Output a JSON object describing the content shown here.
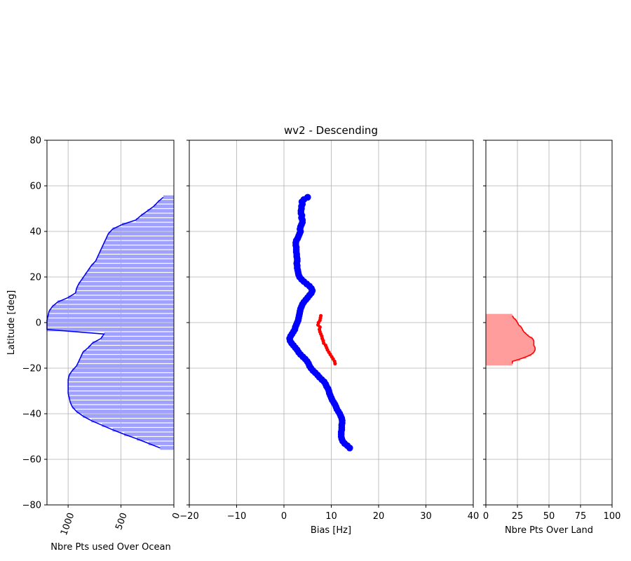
{
  "figure": {
    "title": "wv2 - Descending",
    "ylabel": "Latitude [deg]"
  },
  "chart_data": [
    {
      "id": "ocean",
      "type": "area",
      "xlabel": "Nbre Pts used Over Ocean",
      "ylabel": "Latitude [deg]",
      "xlim": [
        1200,
        0
      ],
      "ylim": [
        -80,
        80
      ],
      "x_inverted": true,
      "xticks": [
        1000,
        500,
        0
      ],
      "yticks": [
        -80,
        -60,
        -40,
        -20,
        0,
        20,
        40,
        60,
        80
      ],
      "xtick_rotation": 70,
      "grid": true,
      "fill_color": "#a0a0ff",
      "line_color": "#0000ff",
      "latitudes": [
        -55,
        -53,
        -51,
        -49,
        -47,
        -45,
        -43,
        -41,
        -39,
        -37,
        -35,
        -33,
        -31,
        -29,
        -27,
        -25,
        -23,
        -21,
        -19,
        -17,
        -15,
        -13,
        -11,
        -9,
        -7,
        -5,
        -3,
        -1,
        1,
        3,
        5,
        7,
        9,
        11,
        13,
        15,
        17,
        19,
        21,
        23,
        25,
        27,
        29,
        31,
        33,
        35,
        37,
        39,
        41,
        43,
        45,
        47,
        49,
        51,
        53,
        55
      ],
      "counts": [
        130,
        240,
        350,
        470,
        580,
        680,
        780,
        860,
        920,
        960,
        980,
        990,
        1000,
        1000,
        1000,
        1000,
        990,
        960,
        920,
        900,
        880,
        860,
        810,
        770,
        690,
        660,
        1200,
        1200,
        1200,
        1190,
        1180,
        1150,
        1100,
        1000,
        930,
        920,
        900,
        870,
        840,
        810,
        780,
        740,
        720,
        700,
        680,
        660,
        640,
        620,
        580,
        490,
        360,
        310,
        250,
        190,
        150,
        100
      ]
    },
    {
      "id": "bias",
      "type": "scatter",
      "title": "wv2 - Descending",
      "xlabel": "Bias [Hz]",
      "xlim": [
        -20,
        40
      ],
      "ylim": [
        -80,
        80
      ],
      "xticks": [
        -20,
        -10,
        0,
        10,
        20,
        30,
        40
      ],
      "grid": true,
      "series": [
        {
          "color": "#0000ff",
          "lat": [
            55,
            54,
            53,
            52,
            51,
            50,
            49,
            48,
            47,
            46,
            45,
            44,
            43,
            42,
            41,
            40,
            39,
            38,
            37,
            36,
            35,
            34,
            33,
            32,
            31,
            30,
            29,
            28,
            27,
            26,
            25,
            24,
            23,
            22,
            21,
            20,
            19,
            18,
            17,
            16,
            15,
            14,
            13,
            12,
            11,
            10,
            9,
            8,
            7,
            6,
            5,
            4,
            3,
            2,
            1,
            0,
            -1,
            -2,
            -3,
            -4,
            -5,
            -6,
            -7,
            -8,
            -9,
            -10,
            -11,
            -12,
            -13,
            -14,
            -15,
            -16,
            -17,
            -18,
            -19,
            -20,
            -21,
            -22,
            -23,
            -24,
            -25,
            -26,
            -27,
            -28,
            -29,
            -30,
            -31,
            -32,
            -33,
            -34,
            -35,
            -36,
            -37,
            -38,
            -39,
            -40,
            -41,
            -42,
            -43,
            -44,
            -45,
            -46,
            -47,
            -48,
            -49,
            -50,
            -51,
            -52,
            -53,
            -54,
            -55
          ],
          "bias": [
            5.0,
            4.2,
            3.8,
            3.9,
            3.7,
            3.7,
            3.6,
            3.6,
            3.8,
            3.7,
            3.9,
            3.9,
            3.7,
            3.5,
            3.4,
            3.5,
            3.3,
            3.1,
            2.9,
            2.6,
            2.5,
            2.5,
            2.6,
            2.6,
            2.6,
            2.7,
            2.7,
            2.8,
            2.8,
            2.7,
            2.8,
            2.8,
            2.9,
            3.0,
            3.1,
            3.3,
            3.7,
            4.2,
            4.8,
            5.4,
            5.8,
            6.0,
            5.8,
            5.4,
            5.0,
            4.6,
            4.2,
            3.9,
            3.7,
            3.5,
            3.4,
            3.3,
            3.2,
            3.1,
            3.0,
            2.8,
            2.6,
            2.4,
            2.3,
            2.0,
            1.7,
            1.4,
            1.2,
            1.3,
            1.6,
            2.0,
            2.4,
            2.8,
            3.1,
            3.5,
            4.0,
            4.5,
            4.9,
            5.2,
            5.4,
            5.7,
            6.1,
            6.6,
            7.1,
            7.5,
            8.0,
            8.5,
            8.8,
            9.0,
            9.3,
            9.5,
            9.6,
            9.8,
            10.0,
            10.2,
            10.5,
            10.8,
            11.0,
            11.2,
            11.5,
            11.8,
            12.0,
            12.2,
            12.3,
            12.3,
            12.2,
            12.2,
            12.2,
            12.1,
            12.1,
            12.1,
            12.2,
            12.4,
            12.8,
            13.4,
            13.9
          ]
        },
        {
          "color": "#ff0000",
          "lat": [
            3,
            2,
            1,
            0,
            -1,
            -2,
            -3,
            -4,
            -5,
            -6,
            -7,
            -8,
            -9,
            -10,
            -11,
            -12,
            -13,
            -14,
            -15,
            -16,
            -17,
            -18
          ],
          "bias": [
            7.8,
            7.7,
            7.6,
            7.3,
            7.2,
            7.6,
            7.5,
            7.6,
            7.8,
            8.0,
            8.1,
            8.3,
            8.4,
            8.8,
            9.0,
            9.2,
            9.5,
            9.8,
            10.1,
            10.4,
            10.7,
            10.8
          ]
        }
      ]
    },
    {
      "id": "land",
      "type": "area",
      "xlabel": "Nbre Pts Over Land",
      "xlim": [
        0,
        100
      ],
      "ylim": [
        -80,
        80
      ],
      "xticks": [
        0,
        25,
        50,
        75,
        100
      ],
      "grid": true,
      "fill_color": "#ff9c9c",
      "line_color": "#ff0000",
      "latitudes": [
        -18,
        -17,
        -16,
        -15,
        -14,
        -13,
        -12,
        -11,
        -10,
        -9,
        -8,
        -7,
        -6,
        -5,
        -4,
        -3,
        -2,
        -1,
        0,
        1,
        2,
        3
      ],
      "counts": [
        21,
        21,
        27,
        32,
        36,
        38,
        39,
        39,
        38,
        38,
        38,
        37,
        34,
        32,
        30,
        29,
        28,
        26,
        25,
        24,
        22,
        21
      ]
    }
  ]
}
